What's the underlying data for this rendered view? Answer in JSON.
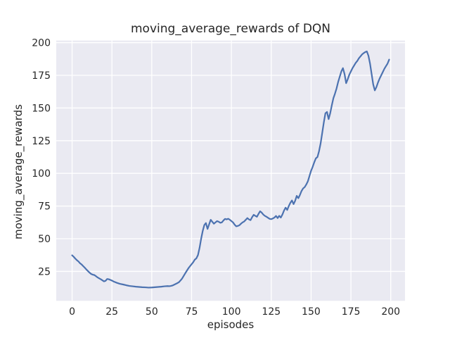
{
  "chart_data": {
    "type": "line",
    "title": "moving_average_rewards of DQN",
    "xlabel": "episodes",
    "ylabel": "moving_average_rewards",
    "xlim": [
      -9.95,
      208.95
    ],
    "ylim": [
      2.5,
      201.6
    ],
    "xticks": [
      0,
      25,
      50,
      75,
      100,
      125,
      150,
      175,
      200
    ],
    "yticks": [
      25,
      50,
      75,
      100,
      125,
      150,
      175,
      200
    ],
    "grid": true,
    "legend": false,
    "colors": {
      "line": "#4C72B0",
      "axes_background": "#EAEAF2",
      "gridline": "#FFFFFF",
      "text": "#262626",
      "figure_background": "#FFFFFF"
    },
    "series": [
      {
        "name": "moving_average_rewards",
        "points": [
          [
            0,
            37.3
          ],
          [
            1,
            36.2
          ],
          [
            2,
            34.8
          ],
          [
            3,
            33.6
          ],
          [
            4,
            32.6
          ],
          [
            5,
            31.2
          ],
          [
            6,
            30.3
          ],
          [
            7,
            29.0
          ],
          [
            8,
            27.8
          ],
          [
            9,
            26.4
          ],
          [
            10,
            25.2
          ],
          [
            11,
            24.0
          ],
          [
            12,
            23.0
          ],
          [
            13,
            22.5
          ],
          [
            14,
            22.2
          ],
          [
            15,
            21.3
          ],
          [
            16,
            20.4
          ],
          [
            17,
            19.7
          ],
          [
            18,
            19.0
          ],
          [
            19,
            18.2
          ],
          [
            20,
            17.4
          ],
          [
            21,
            17.8
          ],
          [
            22,
            19.2
          ],
          [
            23,
            19.0
          ],
          [
            24,
            18.5
          ],
          [
            25,
            18.0
          ],
          [
            26,
            17.3
          ],
          [
            27,
            16.8
          ],
          [
            28,
            16.3
          ],
          [
            29,
            15.9
          ],
          [
            30,
            15.5
          ],
          [
            32,
            15.0
          ],
          [
            34,
            14.4
          ],
          [
            36,
            13.9
          ],
          [
            38,
            13.6
          ],
          [
            40,
            13.3
          ],
          [
            42,
            13.1
          ],
          [
            44,
            12.9
          ],
          [
            46,
            12.8
          ],
          [
            48,
            12.6
          ],
          [
            50,
            12.7
          ],
          [
            52,
            12.9
          ],
          [
            54,
            13.1
          ],
          [
            56,
            13.3
          ],
          [
            58,
            13.6
          ],
          [
            60,
            13.8
          ],
          [
            61,
            13.7
          ],
          [
            62,
            13.9
          ],
          [
            63,
            14.2
          ],
          [
            64,
            14.8
          ],
          [
            65,
            15.4
          ],
          [
            66,
            16.0
          ],
          [
            67,
            16.7
          ],
          [
            68,
            18.0
          ],
          [
            69,
            19.5
          ],
          [
            70,
            21.5
          ],
          [
            71,
            23.5
          ],
          [
            72,
            25.5
          ],
          [
            73,
            27.4
          ],
          [
            74,
            29.0
          ],
          [
            75,
            30.5
          ],
          [
            76,
            32.0
          ],
          [
            77,
            34.0
          ],
          [
            78,
            35.0
          ],
          [
            79,
            37.5
          ],
          [
            80,
            43.0
          ],
          [
            81,
            50.0
          ],
          [
            82,
            56.0
          ],
          [
            83,
            60.5
          ],
          [
            84,
            62.0
          ],
          [
            85,
            57.5
          ],
          [
            86,
            61.0
          ],
          [
            87,
            64.5
          ],
          [
            88,
            63.0
          ],
          [
            89,
            61.5
          ],
          [
            90,
            62.5
          ],
          [
            91,
            63.5
          ],
          [
            92,
            63.0
          ],
          [
            93,
            62.2
          ],
          [
            94,
            62.5
          ],
          [
            95,
            64.0
          ],
          [
            96,
            65.2
          ],
          [
            97,
            64.8
          ],
          [
            98,
            65.3
          ],
          [
            99,
            64.5
          ],
          [
            100,
            63.5
          ],
          [
            101,
            62.5
          ],
          [
            102,
            60.8
          ],
          [
            103,
            59.5
          ],
          [
            104,
            59.8
          ],
          [
            105,
            60.3
          ],
          [
            106,
            61.5
          ],
          [
            107,
            62.5
          ],
          [
            108,
            63.2
          ],
          [
            109,
            64.5
          ],
          [
            110,
            65.8
          ],
          [
            111,
            64.8
          ],
          [
            112,
            64.2
          ],
          [
            113,
            66.5
          ],
          [
            114,
            68.3
          ],
          [
            115,
            67.5
          ],
          [
            116,
            66.8
          ],
          [
            117,
            69.0
          ],
          [
            118,
            71.0
          ],
          [
            119,
            70.0
          ],
          [
            120,
            68.5
          ],
          [
            121,
            67.5
          ],
          [
            122,
            66.8
          ],
          [
            123,
            66.0
          ],
          [
            124,
            65.2
          ],
          [
            125,
            65.0
          ],
          [
            126,
            65.5
          ],
          [
            127,
            66.2
          ],
          [
            128,
            67.4
          ],
          [
            129,
            65.8
          ],
          [
            130,
            67.5
          ],
          [
            131,
            66.2
          ],
          [
            132,
            68.5
          ],
          [
            133,
            71.5
          ],
          [
            134,
            73.8
          ],
          [
            135,
            72.0
          ],
          [
            136,
            75.0
          ],
          [
            137,
            77.5
          ],
          [
            138,
            79.3
          ],
          [
            139,
            76.5
          ],
          [
            140,
            79.0
          ],
          [
            141,
            82.8
          ],
          [
            142,
            81.0
          ],
          [
            143,
            83.5
          ],
          [
            144,
            86.5
          ],
          [
            145,
            88.5
          ],
          [
            146,
            89.5
          ],
          [
            147,
            91.5
          ],
          [
            148,
            94.0
          ],
          [
            149,
            98.0
          ],
          [
            150,
            102.0
          ],
          [
            151,
            105.0
          ],
          [
            152,
            108.5
          ],
          [
            153,
            111.5
          ],
          [
            154,
            112.5
          ],
          [
            155,
            117.0
          ],
          [
            156,
            123.0
          ],
          [
            157,
            131.0
          ],
          [
            158,
            139.0
          ],
          [
            159,
            146.0
          ],
          [
            160,
            147.0
          ],
          [
            161,
            141.5
          ],
          [
            162,
            146.0
          ],
          [
            163,
            152.0
          ],
          [
            164,
            157.5
          ],
          [
            165,
            161.0
          ],
          [
            166,
            165.0
          ],
          [
            167,
            170.0
          ],
          [
            168,
            174.0
          ],
          [
            169,
            178.0
          ],
          [
            170,
            180.5
          ],
          [
            171,
            176.0
          ],
          [
            172,
            169.0
          ],
          [
            173,
            172.0
          ],
          [
            174,
            175.5
          ],
          [
            175,
            178.0
          ],
          [
            176,
            180.5
          ],
          [
            177,
            182.5
          ],
          [
            178,
            184.5
          ],
          [
            179,
            186.0
          ],
          [
            180,
            188.0
          ],
          [
            181,
            189.5
          ],
          [
            182,
            191.0
          ],
          [
            183,
            192.0
          ],
          [
            184,
            192.8
          ],
          [
            185,
            193.3
          ],
          [
            186,
            190.0
          ],
          [
            187,
            184.0
          ],
          [
            188,
            176.0
          ],
          [
            189,
            168.0
          ],
          [
            190,
            163.5
          ],
          [
            191,
            166.0
          ],
          [
            192,
            169.5
          ],
          [
            193,
            172.5
          ],
          [
            194,
            175.0
          ],
          [
            195,
            177.5
          ],
          [
            196,
            180.0
          ],
          [
            197,
            182.0
          ],
          [
            198,
            184.0
          ],
          [
            199,
            187.0
          ]
        ]
      }
    ]
  }
}
